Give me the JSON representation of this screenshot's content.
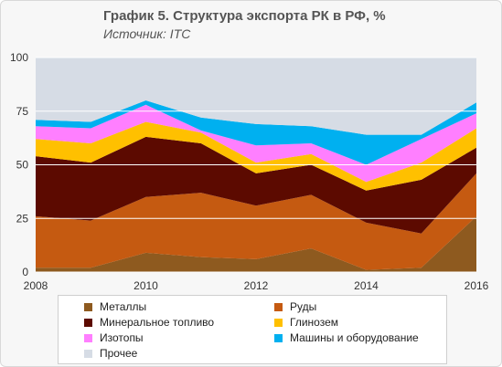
{
  "title": "График 5. Структура экспорта РК в РФ, %",
  "subtitle": "Источник: ITC",
  "chart_data": {
    "type": "area",
    "stacked": true,
    "x": [
      2008,
      2009,
      2010,
      2011,
      2012,
      2013,
      2014,
      2015,
      2016
    ],
    "xticks": [
      "2008",
      "2010",
      "2012",
      "2014",
      "2016"
    ],
    "ylim": [
      0,
      100
    ],
    "yticks": [
      "0",
      "25",
      "50",
      "75",
      "100"
    ],
    "grid": true,
    "legend_position": "bottom",
    "series": [
      {
        "name": "Металлы",
        "color": "#8e5a1f",
        "values": [
          2,
          2,
          9,
          7,
          6,
          11,
          1,
          2,
          26
        ]
      },
      {
        "name": "Руды",
        "color": "#c55a11",
        "values": [
          24,
          22,
          26,
          30,
          25,
          25,
          22,
          16,
          20
        ]
      },
      {
        "name": "Минеральное топливо",
        "color": "#5c0a00",
        "values": [
          28,
          27,
          28,
          23,
          15,
          14,
          15,
          25,
          12
        ]
      },
      {
        "name": "Глинозем",
        "color": "#ffc000",
        "values": [
          8,
          9,
          7,
          5,
          5,
          5,
          4,
          8,
          9
        ]
      },
      {
        "name": "Изотопы",
        "color": "#ff7fff",
        "values": [
          6,
          7,
          8,
          1,
          8,
          5,
          8,
          11,
          7
        ]
      },
      {
        "name": "Машины и оборудование",
        "color": "#00b0f0",
        "values": [
          3,
          3,
          2,
          6,
          10,
          8,
          14,
          2,
          5
        ]
      },
      {
        "name": "Прочее",
        "color": "#d6dce5",
        "values": [
          29,
          30,
          20,
          28,
          31,
          32,
          36,
          36,
          21
        ]
      }
    ]
  }
}
